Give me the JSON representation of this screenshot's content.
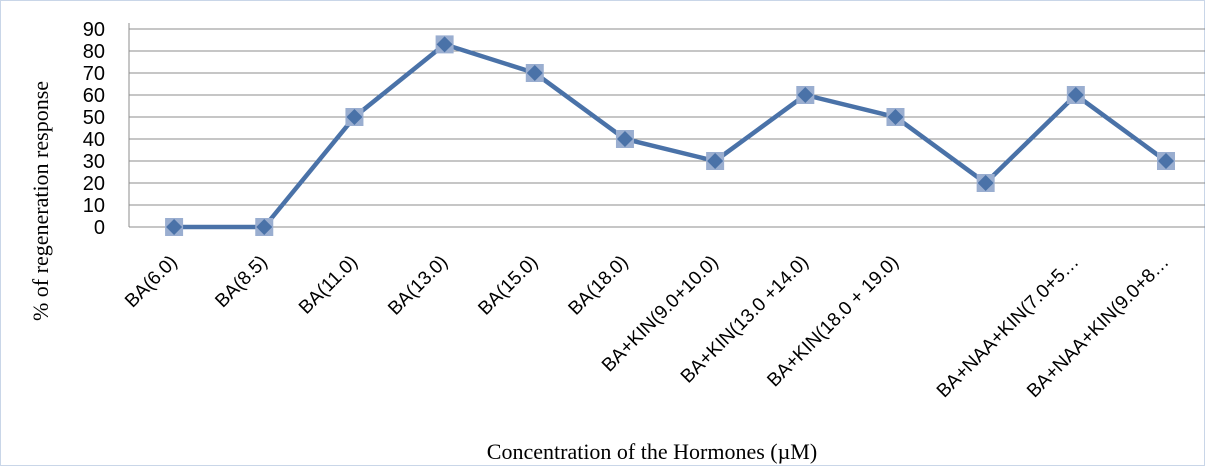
{
  "chart_data": {
    "type": "line",
    "title": "",
    "xlabel": "Concentration of the Hormones (µM)",
    "ylabel": "% of regeneration response",
    "ylim": [
      0,
      90
    ],
    "yticks": [
      0,
      10,
      20,
      30,
      40,
      50,
      60,
      70,
      80,
      90
    ],
    "grid": true,
    "legend": "none",
    "categories": [
      "BA(6.0)",
      "BA(8.5)",
      "BA(11.0)",
      "BA(13.0)",
      "BA(15.0)",
      "BA(18.0)",
      "BA+KIN(9.0+10.0)",
      "BA+KIN(13.0 +14.0)",
      "BA+KIN(18.0 + 19.0)",
      "",
      "BA+NAA+KIN(7.0+5…",
      "BA+NAA+KIN(9.0+8…"
    ],
    "series": [
      {
        "values": [
          0,
          0,
          50,
          83,
          70,
          40,
          30,
          60,
          50,
          20,
          60,
          30
        ],
        "color": "#4a72a8",
        "marker_color": "#4a72a8",
        "marker_shadow_color": "#9aaed0"
      }
    ]
  }
}
